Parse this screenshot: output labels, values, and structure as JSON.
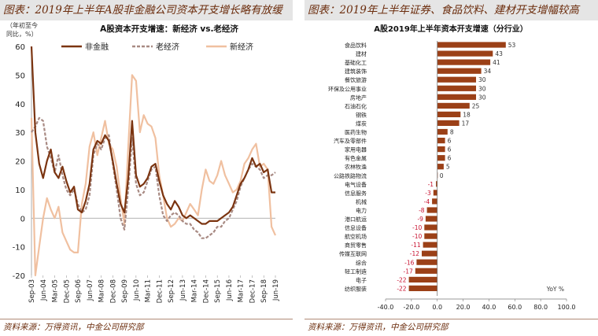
{
  "left_panel_title": "图表：2019年上半年A股非金融公司资本开支增长略有放缓",
  "right_panel_title": "图表：2019年上半年证券、食品饮料、建材开支增幅较高",
  "left_source": "资料来源：万得资讯，中金公司研究部",
  "right_source": "资料来源：万得资讯，中金公司研究部",
  "chart_data": [
    {
      "type": "line",
      "title": "A股资本开支增速：新经济 vs.老经济",
      "ylabel": "（年初至今同比，%）",
      "ylim": [
        -20,
        60
      ],
      "yticks": [
        -20,
        -10,
        0,
        10,
        20,
        30,
        40,
        50,
        60
      ],
      "xstart": "2003-09",
      "xend": "2019-06",
      "xticks": [
        "Sep-03",
        "Jun-04",
        "Mar-05",
        "Dec-05",
        "Sep-06",
        "Jun-07",
        "Mar-08",
        "Dec-08",
        "Sep-09",
        "Jun-10",
        "Mar-11",
        "Dec-11",
        "Sep-12",
        "Jun-13",
        "Mar-14",
        "Dec-14",
        "Sep-15",
        "Jun-16",
        "Mar-17",
        "Dec-17",
        "Sep-18",
        "Jun-19"
      ],
      "legend_position": "top",
      "series": [
        {
          "name": "非金融",
          "color": "#7b3410",
          "style": "solid",
          "points": [
            [
              "2003-09",
              60
            ],
            [
              "2003-12",
              30
            ],
            [
              "2004-03",
              19
            ],
            [
              "2004-06",
              14
            ],
            [
              "2004-09",
              20
            ],
            [
              "2004-12",
              24
            ],
            [
              "2005-03",
              16
            ],
            [
              "2005-06",
              14
            ],
            [
              "2005-09",
              18
            ],
            [
              "2005-12",
              13
            ],
            [
              "2006-03",
              9
            ],
            [
              "2006-06",
              11
            ],
            [
              "2006-09",
              3
            ],
            [
              "2006-12",
              2
            ],
            [
              "2007-03",
              6
            ],
            [
              "2007-06",
              12
            ],
            [
              "2007-09",
              24
            ],
            [
              "2007-12",
              27
            ],
            [
              "2008-03",
              26
            ],
            [
              "2008-06",
              29
            ],
            [
              "2008-09",
              27
            ],
            [
              "2008-12",
              20
            ],
            [
              "2009-03",
              12
            ],
            [
              "2009-06",
              5
            ],
            [
              "2009-09",
              2
            ],
            [
              "2009-12",
              14
            ],
            [
              "2010-03",
              34
            ],
            [
              "2010-06",
              15
            ],
            [
              "2010-09",
              11
            ],
            [
              "2010-12",
              12
            ],
            [
              "2011-03",
              14
            ],
            [
              "2011-06",
              18
            ],
            [
              "2011-09",
              19
            ],
            [
              "2011-12",
              13
            ],
            [
              "2012-03",
              8
            ],
            [
              "2012-06",
              5
            ],
            [
              "2012-09",
              3
            ],
            [
              "2012-12",
              6
            ],
            [
              "2013-03",
              4
            ],
            [
              "2013-06",
              1
            ],
            [
              "2013-09",
              0
            ],
            [
              "2013-12",
              1
            ],
            [
              "2014-03",
              0
            ],
            [
              "2014-06",
              -1
            ],
            [
              "2014-09",
              -2
            ],
            [
              "2014-12",
              -2
            ],
            [
              "2015-03",
              -1
            ],
            [
              "2015-06",
              -1
            ],
            [
              "2015-09",
              -1
            ],
            [
              "2015-12",
              0
            ],
            [
              "2016-03",
              1
            ],
            [
              "2016-06",
              2
            ],
            [
              "2016-09",
              4
            ],
            [
              "2016-12",
              8
            ],
            [
              "2017-03",
              12
            ],
            [
              "2017-06",
              14
            ],
            [
              "2017-09",
              17
            ],
            [
              "2017-12",
              21
            ],
            [
              "2018-03",
              18
            ],
            [
              "2018-06",
              19
            ],
            [
              "2018-09",
              16
            ],
            [
              "2018-12",
              17
            ],
            [
              "2019-03",
              9
            ],
            [
              "2019-06",
              9
            ]
          ]
        },
        {
          "name": "老经济",
          "color": "#a88a83",
          "style": "dashed",
          "points": [
            [
              "2003-09",
              30
            ],
            [
              "2003-12",
              32
            ],
            [
              "2004-03",
              35
            ],
            [
              "2004-06",
              34
            ],
            [
              "2004-09",
              25
            ],
            [
              "2004-12",
              21
            ],
            [
              "2005-03",
              16
            ],
            [
              "2005-06",
              22
            ],
            [
              "2005-09",
              15
            ],
            [
              "2005-12",
              10
            ],
            [
              "2006-03",
              8
            ],
            [
              "2006-06",
              10
            ],
            [
              "2006-09",
              5
            ],
            [
              "2006-12",
              2
            ],
            [
              "2007-03",
              3
            ],
            [
              "2007-06",
              8
            ],
            [
              "2007-09",
              22
            ],
            [
              "2007-12",
              26
            ],
            [
              "2008-03",
              24
            ],
            [
              "2008-06",
              28
            ],
            [
              "2008-09",
              29
            ],
            [
              "2008-12",
              19
            ],
            [
              "2009-03",
              10
            ],
            [
              "2009-06",
              0
            ],
            [
              "2009-09",
              -4
            ],
            [
              "2009-12",
              10
            ],
            [
              "2010-03",
              28
            ],
            [
              "2010-06",
              12
            ],
            [
              "2010-09",
              8
            ],
            [
              "2010-12",
              9
            ],
            [
              "2011-03",
              13
            ],
            [
              "2011-06",
              17
            ],
            [
              "2011-09",
              18
            ],
            [
              "2011-12",
              8
            ],
            [
              "2012-03",
              1
            ],
            [
              "2012-06",
              -1
            ],
            [
              "2012-09",
              1
            ],
            [
              "2012-12",
              2
            ],
            [
              "2013-03",
              1
            ],
            [
              "2013-06",
              -1
            ],
            [
              "2013-09",
              -2
            ],
            [
              "2013-12",
              -2
            ],
            [
              "2014-03",
              -4
            ],
            [
              "2014-06",
              -5
            ],
            [
              "2014-09",
              -7
            ],
            [
              "2014-12",
              -7
            ],
            [
              "2015-03",
              -6
            ],
            [
              "2015-06",
              -5
            ],
            [
              "2015-09",
              -3
            ],
            [
              "2015-12",
              -3
            ],
            [
              "2016-03",
              -1
            ],
            [
              "2016-06",
              0
            ],
            [
              "2016-09",
              3
            ],
            [
              "2016-12",
              6
            ],
            [
              "2017-03",
              11
            ],
            [
              "2017-06",
              14
            ],
            [
              "2017-09",
              17
            ],
            [
              "2017-12",
              19
            ],
            [
              "2018-03",
              18
            ],
            [
              "2018-06",
              17
            ],
            [
              "2018-09",
              14
            ],
            [
              "2018-12",
              15
            ],
            [
              "2019-03",
              15
            ],
            [
              "2019-06",
              16
            ]
          ]
        },
        {
          "name": "新经济",
          "color": "#f0c0a0",
          "style": "solid",
          "points": [
            [
              "2003-09",
              35
            ],
            [
              "2003-12",
              -20
            ],
            [
              "2004-03",
              -10
            ],
            [
              "2004-06",
              0
            ],
            [
              "2004-09",
              7
            ],
            [
              "2004-12",
              3
            ],
            [
              "2005-03",
              0
            ],
            [
              "2005-06",
              4
            ],
            [
              "2005-09",
              -5
            ],
            [
              "2005-12",
              -8
            ],
            [
              "2006-03",
              -11
            ],
            [
              "2006-06",
              -12
            ],
            [
              "2006-09",
              -12
            ],
            [
              "2006-12",
              5
            ],
            [
              "2007-03",
              12
            ],
            [
              "2007-06",
              25
            ],
            [
              "2007-09",
              30
            ],
            [
              "2007-12",
              22
            ],
            [
              "2008-03",
              28
            ],
            [
              "2008-06",
              34
            ],
            [
              "2008-09",
              26
            ],
            [
              "2008-12",
              24
            ],
            [
              "2009-03",
              18
            ],
            [
              "2009-06",
              7
            ],
            [
              "2009-09",
              -2
            ],
            [
              "2009-12",
              25
            ],
            [
              "2010-03",
              50
            ],
            [
              "2010-06",
              48
            ],
            [
              "2010-09",
              30
            ],
            [
              "2010-12",
              36
            ],
            [
              "2011-03",
              33
            ],
            [
              "2011-06",
              32
            ],
            [
              "2011-09",
              28
            ],
            [
              "2011-12",
              15
            ],
            [
              "2012-03",
              8
            ],
            [
              "2012-06",
              0
            ],
            [
              "2012-09",
              -3
            ],
            [
              "2012-12",
              -2
            ],
            [
              "2013-03",
              0
            ],
            [
              "2013-06",
              -1
            ],
            [
              "2013-09",
              2
            ],
            [
              "2013-12",
              5
            ],
            [
              "2014-03",
              3
            ],
            [
              "2014-06",
              1
            ],
            [
              "2014-09",
              10
            ],
            [
              "2014-12",
              17
            ],
            [
              "2015-03",
              13
            ],
            [
              "2015-06",
              12
            ],
            [
              "2015-09",
              15
            ],
            [
              "2015-12",
              20
            ],
            [
              "2016-03",
              15
            ],
            [
              "2016-06",
              12
            ],
            [
              "2016-09",
              9
            ],
            [
              "2016-12",
              10
            ],
            [
              "2017-03",
              13
            ],
            [
              "2017-06",
              19
            ],
            [
              "2017-09",
              21
            ],
            [
              "2017-12",
              24
            ],
            [
              "2018-03",
              26
            ],
            [
              "2018-06",
              18
            ],
            [
              "2018-09",
              19
            ],
            [
              "2018-12",
              17
            ],
            [
              "2019-03",
              -3
            ],
            [
              "2019-06",
              -6
            ]
          ]
        }
      ]
    },
    {
      "type": "bar",
      "orientation": "horizontal",
      "title": "A股2019年上半年资本开支增速（分行业）",
      "xlabel": "YoY %",
      "xlim": [
        -40,
        100
      ],
      "xticks": [
        -40,
        -20,
        0,
        20,
        40,
        60,
        80,
        100
      ],
      "xtick_labels": [
        "-40.0",
        "-20.0",
        "0.0",
        "20.0",
        "40.0",
        "60.0",
        "80.0",
        "100.0"
      ],
      "bar_color": "#9b4017",
      "label_color_positive": "#333333",
      "label_color_negative": "#c8102e",
      "categories": [
        "食品饮料",
        "建材",
        "基础化工",
        "建筑装饰",
        "餐饮旅游",
        "环保及公用事业",
        "房地产",
        "石油石化",
        "钢铁",
        "煤炭",
        "医药生物",
        "汽车及零部件",
        "家用电器",
        "有色金属",
        "农林牧渔",
        "公路铁路物流",
        "电气设备",
        "信息服务",
        "机械",
        "电力",
        "港口航运",
        "信息设备",
        "航空机场",
        "商贸零售",
        "传媒互联网",
        "综合",
        "轻工制造",
        "电子",
        "纺织服装"
      ],
      "values": [
        53,
        43,
        41,
        34,
        30,
        30,
        30,
        25,
        18,
        17,
        8,
        6,
        6,
        6,
        5,
        0,
        -1,
        -3,
        -4,
        -8,
        -9,
        -10,
        -10,
        -11,
        -12,
        -16,
        -17,
        -22,
        -22
      ]
    }
  ]
}
